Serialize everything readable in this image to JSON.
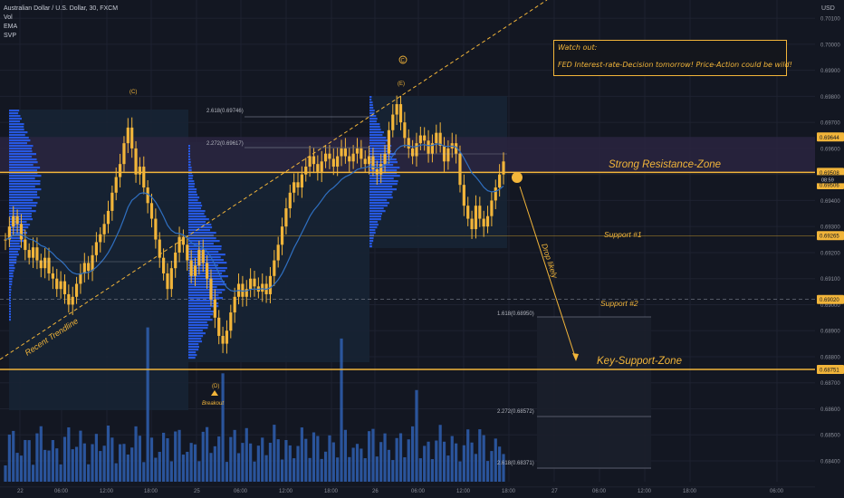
{
  "header": {
    "title": "Australian Dollar / U.S. Dollar, 30, FXCM",
    "indicators": [
      "Vol",
      "EMA",
      "SVP"
    ],
    "currency": "USD"
  },
  "colors": {
    "background": "#131722",
    "candle": "#f2b53a",
    "ema": "#2f6fc0",
    "volume": "#2f5fb0",
    "accent": "#f2b53a",
    "profile": "#2962ff",
    "resistance_band": "#2a2540"
  },
  "annotations": {
    "note_title": "Watch out:",
    "note_body": "FED Interest-rate-Decision tomorrow! Price-Action could be wild!",
    "resistance_zone": "Strong Resistance-Zone",
    "support1": "Support #1",
    "support2": "Support #2",
    "key_support": "Key-Support-Zone",
    "drop_likely": "Drop likely",
    "trendline": "Recent Trendline",
    "breakout": "Breakout",
    "wave_c": "(C)",
    "wave_e": "(E)",
    "wave_d": "(D)",
    "wave_c_circle": "C",
    "fib_levels": [
      {
        "label": "2.618(0.69746)",
        "price": 0.69746
      },
      {
        "label": "2.272(0.69617)",
        "price": 0.69617
      },
      {
        "label": "1.618(0.68950)",
        "price": 0.6895
      },
      {
        "label": "2.272(0.68572)",
        "price": 0.68572
      },
      {
        "label": "2.618(0.68371)",
        "price": 0.68371
      }
    ],
    "countdown": "08:59"
  },
  "chart_data": {
    "type": "candlestick",
    "title": "Australian Dollar / U.S. Dollar, 30, FXCM",
    "ylabel": "USD",
    "ylim": [
      0.6832,
      0.7017
    ],
    "grid": true,
    "x_ticks": [
      "22",
      "06:00",
      "12:00",
      "18:00",
      "25",
      "06:00",
      "12:00",
      "18:00",
      "26",
      "06:00",
      "12:00",
      "18:00",
      "27",
      "06:00",
      "12:00",
      "18:00",
      "06:00"
    ],
    "y_ticks": [
      "0.70100",
      "0.70000",
      "0.69900",
      "0.69800",
      "0.69700",
      "0.69600",
      "0.69500",
      "0.69400",
      "0.69300",
      "0.69200",
      "0.69100",
      "0.69000",
      "0.68900",
      "0.68800",
      "0.68700",
      "0.68600",
      "0.68500",
      "0.68400",
      "0.68300"
    ],
    "price_labels": [
      {
        "value": 0.69644,
        "text": "0.69644"
      },
      {
        "value": 0.69508,
        "text": "0.69508"
      },
      {
        "value": 0.69506,
        "text": "0.69506"
      },
      {
        "value": 0.69265,
        "text": "0.69265"
      },
      {
        "value": 0.6902,
        "text": "0.69020"
      },
      {
        "value": 0.68751,
        "text": "0.68751"
      }
    ],
    "levels": {
      "resistance_top": 0.69644,
      "resistance_bottom": 0.69508,
      "support1": 0.69265,
      "support2": 0.6902,
      "key_support": 0.68751
    },
    "candles_close": [
      0.6925,
      0.693,
      0.6934,
      0.6931,
      0.6925,
      0.6921,
      0.6918,
      0.6922,
      0.6917,
      0.6914,
      0.6918,
      0.6912,
      0.691,
      0.6906,
      0.6909,
      0.6904,
      0.69,
      0.6903,
      0.6908,
      0.6912,
      0.6916,
      0.6913,
      0.6919,
      0.6924,
      0.6927,
      0.6931,
      0.6936,
      0.6943,
      0.6949,
      0.6954,
      0.6962,
      0.6968,
      0.696,
      0.695,
      0.6953,
      0.6945,
      0.6939,
      0.6933,
      0.6925,
      0.6918,
      0.6912,
      0.6906,
      0.6914,
      0.692,
      0.6926,
      0.6923,
      0.6917,
      0.6911,
      0.6915,
      0.6921,
      0.6916,
      0.691,
      0.6902,
      0.6895,
      0.6888,
      0.6885,
      0.689,
      0.6897,
      0.6903,
      0.6908,
      0.6903,
      0.6906,
      0.691,
      0.6907,
      0.6905,
      0.6908,
      0.6904,
      0.6911,
      0.6917,
      0.6923,
      0.693,
      0.6937,
      0.6943,
      0.6947,
      0.6945,
      0.695,
      0.6953,
      0.6957,
      0.6954,
      0.6951,
      0.6955,
      0.6958,
      0.6956,
      0.6953,
      0.6957,
      0.696,
      0.6957,
      0.6955,
      0.6958,
      0.696,
      0.6956,
      0.6954,
      0.6957,
      0.6952,
      0.695,
      0.6954,
      0.6958,
      0.6967,
      0.6973,
      0.6977,
      0.697,
      0.6964,
      0.696,
      0.6957,
      0.6962,
      0.6965,
      0.6963,
      0.6958,
      0.6962,
      0.6966,
      0.6961,
      0.6955,
      0.696,
      0.6962,
      0.6958,
      0.6946,
      0.6938,
      0.6933,
      0.6929,
      0.6938,
      0.6933,
      0.693,
      0.6934,
      0.694,
      0.6945,
      0.695,
      0.6955
    ]
  }
}
